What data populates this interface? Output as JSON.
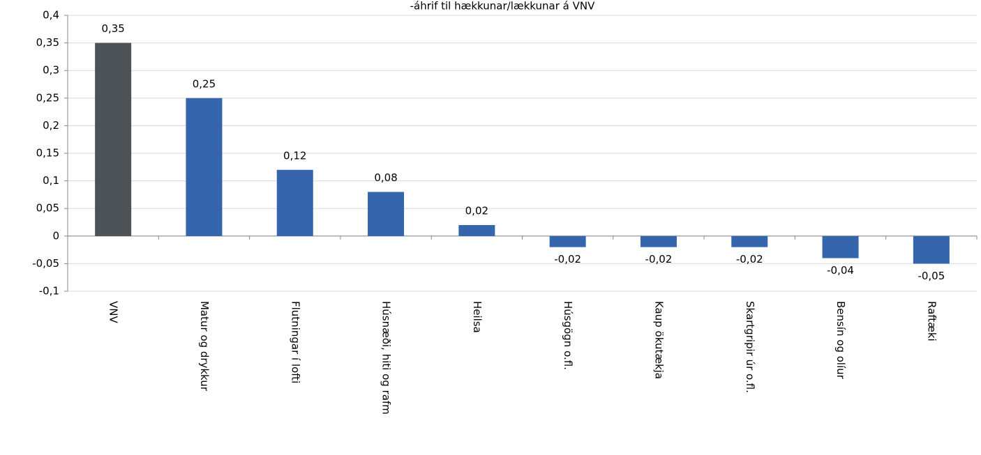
{
  "chart_data": {
    "type": "bar",
    "title": "-áhrif til hækkunar/lækkunar á VNV",
    "categories": [
      "VNV",
      "Matur og drykkur",
      "Flutningar í lofti",
      "Húsnæði, hiti og rafm",
      "Heilsa",
      "Húsgögn o.fl.",
      "Kaup ökutækja",
      "Skartgripir úr o.fl.",
      "Bensín og olíur",
      "Raftæki"
    ],
    "values": [
      0.35,
      0.25,
      0.12,
      0.08,
      0.02,
      -0.02,
      -0.02,
      -0.02,
      -0.04,
      -0.05
    ],
    "value_labels": [
      "0,35",
      "0,25",
      "0,12",
      "0,08",
      "0,02",
      "-0,02",
      "-0,02",
      "-0,02",
      "-0,04",
      "-0,05"
    ],
    "colors": [
      "#4d5257",
      "#3566ad",
      "#3566ad",
      "#3566ad",
      "#3566ad",
      "#3566ad",
      "#3566ad",
      "#3566ad",
      "#3566ad",
      "#3566ad"
    ],
    "ylim": [
      -0.1,
      0.4
    ],
    "yticks": [
      {
        "value": -0.1,
        "label": "-0,1"
      },
      {
        "value": -0.05,
        "label": "-0,05"
      },
      0,
      {
        "value": 0.05,
        "label": "0,05"
      },
      {
        "value": 0.1,
        "label": "0,1"
      },
      {
        "value": 0.15,
        "label": "0,15"
      },
      {
        "value": 0.2,
        "label": "0,2"
      },
      {
        "value": 0.25,
        "label": "0,25"
      },
      {
        "value": 0.3,
        "label": "0,3"
      },
      {
        "value": 0.35,
        "label": "0,35"
      },
      {
        "value": 0.4,
        "label": "0,4"
      }
    ],
    "grid": true
  }
}
